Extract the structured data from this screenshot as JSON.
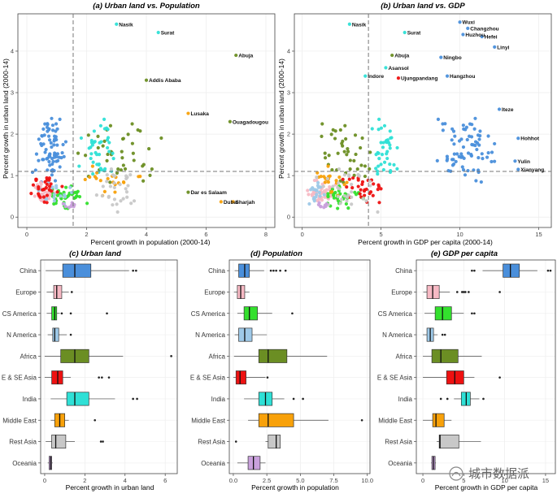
{
  "chart_data": [
    {
      "type": "scatter",
      "title": "(a) Urban land vs. Population",
      "xlabel": "Percent growth in population (2000-14)",
      "ylabel": "Percent growth in urban land (2000-14)",
      "xlim": [
        -0.3,
        8.3
      ],
      "ylim": [
        -0.25,
        4.9
      ],
      "xticks": [
        0,
        2,
        4,
        6,
        8
      ],
      "yticks": [
        0,
        1,
        2,
        3,
        4
      ],
      "ref_v": 1.55,
      "ref_h": 1.1,
      "labels": [
        {
          "text": "Nasik",
          "x": 3.0,
          "y": 4.65
        },
        {
          "text": "Surat",
          "x": 4.4,
          "y": 4.45
        },
        {
          "text": "Abuja",
          "x": 7.0,
          "y": 3.9
        },
        {
          "text": "Addis Ababa",
          "x": 4.0,
          "y": 3.3
        },
        {
          "text": "Lusaka",
          "x": 5.4,
          "y": 2.5
        },
        {
          "text": "Ouagadougou",
          "x": 6.8,
          "y": 2.3
        },
        {
          "text": "Dar es Salaam",
          "x": 5.4,
          "y": 0.6
        },
        {
          "text": "Dubai",
          "x": 6.5,
          "y": 0.37
        },
        {
          "text": "Sharjah",
          "x": 6.9,
          "y": 0.37
        }
      ]
    },
    {
      "type": "scatter",
      "title": "(b) Urban land vs. GDP",
      "xlabel": "Percent growth in GDP per capita (2000-14)",
      "ylabel": "Percent growth in urban land (2000-14)",
      "xlim": [
        -0.5,
        15.8
      ],
      "ylim": [
        -0.25,
        4.9
      ],
      "xticks": [
        0,
        5,
        10,
        15
      ],
      "yticks": [
        0,
        1,
        2,
        3,
        4
      ],
      "ref_v": 4.2,
      "ref_h": 1.1,
      "labels": [
        {
          "text": "Nasik",
          "x": 3.0,
          "y": 4.65
        },
        {
          "text": "Surat",
          "x": 6.5,
          "y": 4.45
        },
        {
          "text": "Wuxi",
          "x": 10.0,
          "y": 4.7
        },
        {
          "text": "Changzhou",
          "x": 10.5,
          "y": 4.55
        },
        {
          "text": "Huzhou",
          "x": 10.2,
          "y": 4.4
        },
        {
          "text": "Hefei",
          "x": 11.4,
          "y": 4.35
        },
        {
          "text": "Linyi",
          "x": 12.2,
          "y": 4.1
        },
        {
          "text": "Abuja",
          "x": 5.7,
          "y": 3.9
        },
        {
          "text": "Ningbo",
          "x": 8.8,
          "y": 3.85
        },
        {
          "text": "Asansol",
          "x": 5.3,
          "y": 3.6
        },
        {
          "text": "Indore",
          "x": 4.0,
          "y": 3.4
        },
        {
          "text": "Ujungpandang",
          "x": 6.1,
          "y": 3.35
        },
        {
          "text": "Hangzhou",
          "x": 9.2,
          "y": 3.4
        },
        {
          "text": "Iteze",
          "x": 12.5,
          "y": 2.6
        },
        {
          "text": "Hohhot",
          "x": 13.7,
          "y": 1.9
        },
        {
          "text": "Yulin",
          "x": 13.5,
          "y": 1.35
        },
        {
          "text": "Xianyang",
          "x": 13.7,
          "y": 1.15
        }
      ]
    },
    {
      "type": "box",
      "title": "(c) Urban land",
      "xlabel": "Percent growth in urban land",
      "xlim": [
        -0.2,
        6.6
      ],
      "xticks": [
        0,
        2,
        4,
        6
      ],
      "categories": [
        "China",
        "Europe",
        "CS America",
        "N America",
        "Africa",
        "E & SE Asia",
        "India",
        "Middle East",
        "Rest Asia",
        "Oceania"
      ],
      "boxes": [
        {
          "lw": 0.05,
          "q1": 0.9,
          "med": 1.5,
          "q3": 2.3,
          "uw": 4.2,
          "out": [
            4.4,
            4.55
          ]
        },
        {
          "lw": 0.1,
          "q1": 0.45,
          "med": 0.6,
          "q3": 0.85,
          "uw": 1.2,
          "out": [
            1.35
          ]
        },
        {
          "lw": 0.1,
          "q1": 0.35,
          "med": 0.5,
          "q3": 0.6,
          "uw": 0.75,
          "out": [
            0.85,
            1.3,
            3.1
          ]
        },
        {
          "lw": 0.15,
          "q1": 0.4,
          "med": 0.5,
          "q3": 0.7,
          "uw": 1.1,
          "out": [
            1.3
          ]
        },
        {
          "lw": 0.0,
          "q1": 0.8,
          "med": 1.5,
          "q3": 2.2,
          "uw": 3.9,
          "out": [
            6.3
          ]
        },
        {
          "lw": 0.0,
          "q1": 0.35,
          "med": 0.65,
          "q3": 0.9,
          "uw": 1.3,
          "out": [
            2.7,
            2.85,
            3.2
          ]
        },
        {
          "lw": 0.3,
          "q1": 1.1,
          "med": 1.5,
          "q3": 2.2,
          "uw": 3.5,
          "out": [
            4.4,
            4.6
          ]
        },
        {
          "lw": 0.3,
          "q1": 0.5,
          "med": 0.75,
          "q3": 1.0,
          "uw": 1.2,
          "out": [
            2.5
          ]
        },
        {
          "lw": 0.05,
          "q1": 0.35,
          "med": 0.55,
          "q3": 1.05,
          "uw": 1.5,
          "out": [
            2.8,
            2.9
          ]
        },
        {
          "lw": 0.15,
          "q1": 0.22,
          "med": 0.3,
          "q3": 0.35,
          "uw": 0.4,
          "out": []
        }
      ],
      "colors": [
        "#4a8fdb",
        "#f7b9c4",
        "#33e02d",
        "#9ec9e8",
        "#6b8e23",
        "#ee1111",
        "#2fe0d6",
        "#f8a10a",
        "#c8c8c8",
        "#c9a0dc"
      ]
    },
    {
      "type": "box",
      "title": "(d) Population",
      "xlabel": "Percent growth in population",
      "xlim": [
        -0.3,
        10.2
      ],
      "xticks": [
        0.0,
        2.5,
        5.0,
        7.5,
        10.0
      ],
      "categories": [
        "China",
        "Europe",
        "CS America",
        "N America",
        "Africa",
        "E & SE Asia",
        "India",
        "Middle East",
        "Rest Asia",
        "Oceania"
      ],
      "boxes": [
        {
          "lw": 0.1,
          "q1": 0.4,
          "med": 0.85,
          "q3": 1.2,
          "uw": 2.3,
          "out": [
            2.8,
            3.0,
            3.2,
            3.5,
            3.9
          ]
        },
        {
          "lw": 0.05,
          "q1": 0.3,
          "med": 0.55,
          "q3": 0.85,
          "uw": 1.2,
          "out": []
        },
        {
          "lw": 0.3,
          "q1": 0.8,
          "med": 1.2,
          "q3": 1.8,
          "uw": 2.9,
          "out": [
            4.4
          ]
        },
        {
          "lw": 0.1,
          "q1": 0.4,
          "med": 0.85,
          "q3": 1.4,
          "uw": 2.5,
          "out": []
        },
        {
          "lw": 0.05,
          "q1": 1.9,
          "med": 2.6,
          "q3": 4.0,
          "uw": 7.0,
          "out": []
        },
        {
          "lw": 0.0,
          "q1": 0.2,
          "med": 0.5,
          "q3": 0.95,
          "uw": 2.4,
          "out": [
            2.55
          ]
        },
        {
          "lw": 0.8,
          "q1": 1.9,
          "med": 2.4,
          "q3": 2.9,
          "uw": 3.8,
          "out": [
            4.5,
            5.2
          ]
        },
        {
          "lw": 1.1,
          "q1": 1.9,
          "med": 2.6,
          "q3": 4.5,
          "uw": 7.1,
          "out": [
            9.6
          ]
        },
        {
          "lw": 2.4,
          "q1": 2.6,
          "med": 3.2,
          "q3": 3.5,
          "uw": 3.5,
          "out": [
            0.2
          ]
        },
        {
          "lw": 0.3,
          "q1": 1.1,
          "med": 1.5,
          "q3": 2.0,
          "uw": 2.4,
          "out": []
        }
      ],
      "colors": [
        "#4a8fdb",
        "#f7b9c4",
        "#33e02d",
        "#9ec9e8",
        "#6b8e23",
        "#ee1111",
        "#2fe0d6",
        "#f8a10a",
        "#c8c8c8",
        "#c9a0dc"
      ]
    },
    {
      "type": "box",
      "title": "(e) GDP per capita",
      "xlabel": "Percent growth in GDP per capita",
      "xlim": [
        -0.8,
        16.2
      ],
      "xticks": [
        0,
        5,
        10,
        15
      ],
      "categories": [
        "China",
        "Europe",
        "CS America",
        "N America",
        "Africa",
        "E & SE Asia",
        "India",
        "Middle East",
        "Rest Asia",
        "Oceania"
      ],
      "boxes": [
        {
          "lw": 7.3,
          "q1": 9.8,
          "med": 10.7,
          "q3": 11.8,
          "uw": 14.0,
          "out": [
            6.0,
            6.3,
            15.3,
            15.6
          ]
        },
        {
          "lw": 0.05,
          "q1": 0.5,
          "med": 1.2,
          "q3": 2.0,
          "uw": 3.3,
          "out": [
            4.2,
            4.8,
            5.0,
            5.2,
            5.6,
            9.4
          ]
        },
        {
          "lw": 0.2,
          "q1": 1.5,
          "med": 2.4,
          "q3": 3.5,
          "uw": 5.0,
          "out": [
            6.0,
            6.3
          ]
        },
        {
          "lw": 0.0,
          "q1": 0.5,
          "med": 0.9,
          "q3": 1.3,
          "uw": 1.8,
          "out": [
            2.4,
            2.7
          ]
        },
        {
          "lw": 0.0,
          "q1": 1.1,
          "med": 2.2,
          "q3": 4.3,
          "uw": 7.2,
          "out": []
        },
        {
          "lw": 0.0,
          "q1": 2.9,
          "med": 3.9,
          "q3": 5.0,
          "uw": 6.3,
          "out": [
            9.4
          ]
        },
        {
          "lw": 3.8,
          "q1": 4.7,
          "med": 5.3,
          "q3": 5.8,
          "uw": 6.9,
          "out": [
            2.2,
            3.0,
            7.4
          ]
        },
        {
          "lw": 0.0,
          "q1": 1.2,
          "med": 1.6,
          "q3": 2.6,
          "uw": 3.5,
          "out": []
        },
        {
          "lw": 1.7,
          "q1": 2.0,
          "med": 2.1,
          "q3": 4.4,
          "uw": 7.1,
          "out": []
        },
        {
          "lw": 1.0,
          "q1": 1.1,
          "med": 1.3,
          "q3": 1.5,
          "uw": 1.6,
          "out": []
        }
      ],
      "colors": [
        "#4a8fdb",
        "#f7b9c4",
        "#33e02d",
        "#9ec9e8",
        "#6b8e23",
        "#ee1111",
        "#2fe0d6",
        "#f8a10a",
        "#c8c8c8",
        "#c9a0dc"
      ]
    }
  ],
  "watermark": "城市数据派"
}
